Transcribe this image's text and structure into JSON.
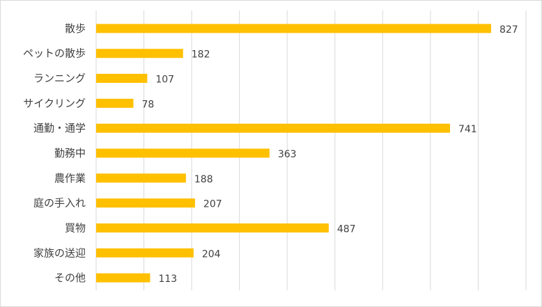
{
  "chart_data": {
    "type": "bar",
    "orientation": "horizontal",
    "categories": [
      "散歩",
      "ペットの散歩",
      "ランニング",
      "サイクリング",
      "通勤・通学",
      "勤務中",
      "農作業",
      "庭の手入れ",
      "買物",
      "家族の送迎",
      "その他"
    ],
    "values": [
      827,
      182,
      107,
      78,
      741,
      363,
      188,
      207,
      487,
      204,
      113
    ],
    "title": "",
    "xlabel": "",
    "ylabel": "",
    "xlim": [
      0,
      900
    ],
    "grid": true,
    "data_labels": true,
    "legend": "none",
    "bar_color": "#FFC000",
    "grid_color": "#d9d9d9"
  }
}
